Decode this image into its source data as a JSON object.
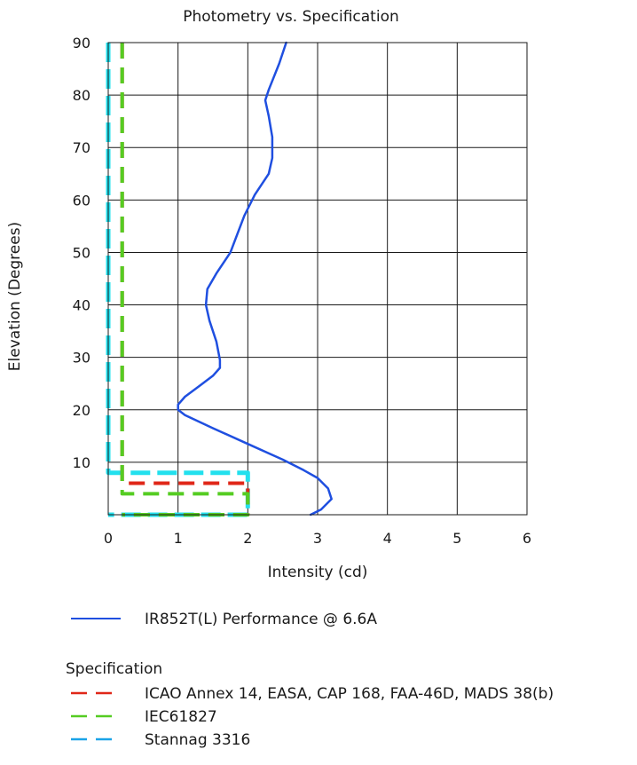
{
  "chart_data": {
    "type": "line",
    "title": "Photometry vs. Specification",
    "xlabel": "Intensity (cd)",
    "ylabel": "Elevation (Degrees)",
    "xlim": [
      0,
      6
    ],
    "ylim": [
      0,
      90
    ],
    "x_ticks": [
      "0",
      "1",
      "2",
      "3",
      "4",
      "5",
      "6"
    ],
    "y_ticks": [
      "10",
      "20",
      "30",
      "40",
      "50",
      "60",
      "70",
      "80",
      "90"
    ],
    "grid": true,
    "series": [
      {
        "name": "IR852T(L) Performance @ 6.6A",
        "style": "solid",
        "color": "#1f4fe0",
        "points": [
          [
            2.9,
            0
          ],
          [
            3.05,
            1
          ],
          [
            3.2,
            3
          ],
          [
            3.15,
            5
          ],
          [
            3.0,
            7
          ],
          [
            2.8,
            8.5
          ],
          [
            2.5,
            10.5
          ],
          [
            2.0,
            13.5
          ],
          [
            1.5,
            16.5
          ],
          [
            1.1,
            19
          ],
          [
            1.0,
            20
          ],
          [
            1.0,
            21
          ],
          [
            1.1,
            22.5
          ],
          [
            1.3,
            24.5
          ],
          [
            1.5,
            26.5
          ],
          [
            1.6,
            28
          ],
          [
            1.6,
            29.5
          ],
          [
            1.55,
            33
          ],
          [
            1.45,
            37
          ],
          [
            1.4,
            40
          ],
          [
            1.42,
            43
          ],
          [
            1.55,
            46
          ],
          [
            1.75,
            50
          ],
          [
            1.85,
            53.5
          ],
          [
            1.95,
            57
          ],
          [
            2.1,
            61
          ],
          [
            2.3,
            65
          ],
          [
            2.35,
            68
          ],
          [
            2.35,
            72
          ],
          [
            2.3,
            76
          ],
          [
            2.25,
            79
          ],
          [
            2.3,
            81
          ],
          [
            2.45,
            86
          ],
          [
            2.55,
            90
          ]
        ]
      },
      {
        "name": "ICAO Annex 14, EASA, CAP 168, FAA-46D, MADS 38(b)",
        "style": "dashed",
        "color": "#e02718",
        "points": [
          [
            0.2,
            90
          ],
          [
            0.2,
            6
          ],
          [
            2.0,
            6
          ],
          [
            2.0,
            0
          ],
          [
            0.2,
            0
          ]
        ]
      },
      {
        "name": "IEC61827",
        "style": "dashed",
        "color": "#55cc22",
        "points": [
          [
            0.2,
            90
          ],
          [
            0.2,
            4
          ],
          [
            2.0,
            4
          ],
          [
            2.0,
            0
          ],
          [
            0.2,
            0
          ]
        ]
      },
      {
        "name": "Stannag 3316",
        "style": "dashed",
        "color": "#22e0ee",
        "legend_color": "#1aa3e8",
        "points": [
          [
            0.0,
            90
          ],
          [
            0.0,
            8
          ],
          [
            2.0,
            8
          ],
          [
            2.0,
            0
          ],
          [
            0.0,
            0
          ]
        ]
      }
    ],
    "legend_groups": [
      {
        "heading": "",
        "items": [
          "IR852T(L) Performance @ 6.6A"
        ]
      },
      {
        "heading": "Specification",
        "items": [
          "ICAO Annex 14, EASA, CAP 168, FAA-46D, MADS 38(b)",
          "IEC61827",
          "Stannag 3316"
        ]
      }
    ],
    "legend_placement": "bottom-left"
  }
}
